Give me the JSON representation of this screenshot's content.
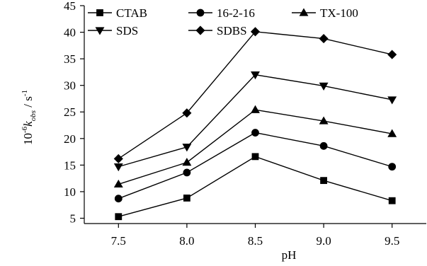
{
  "chart_data": {
    "type": "line",
    "xlabel": "pH",
    "ylabel_parts": {
      "base": "10",
      "exp": "-6",
      "k": "k",
      "sub": "obs",
      "unit": " / s",
      "unit_exp": "-1"
    },
    "x": [
      7.5,
      8.0,
      8.5,
      9.0,
      9.5
    ],
    "x_tick_labels": [
      "7.5",
      "8.0",
      "8.5",
      "9.0",
      "9.5"
    ],
    "xlim": [
      7.25,
      9.75
    ],
    "y_ticks": [
      5,
      10,
      15,
      20,
      25,
      30,
      35,
      40,
      45
    ],
    "y_tick_labels": [
      "5",
      "10",
      "15",
      "20",
      "25",
      "30",
      "35",
      "40",
      "45"
    ],
    "ylim": [
      4,
      45
    ],
    "grid": false,
    "legend_placement": "top-left",
    "series": [
      {
        "name": "CTAB",
        "marker": "square",
        "values": [
          5.3,
          8.8,
          16.6,
          12.1,
          8.3
        ]
      },
      {
        "name": "16-2-16",
        "marker": "circle",
        "values": [
          8.7,
          13.6,
          21.1,
          18.6,
          14.7
        ]
      },
      {
        "name": "TX-100",
        "marker": "triangle-up",
        "values": [
          11.4,
          15.5,
          25.4,
          23.3,
          20.9
        ]
      },
      {
        "name": "SDS",
        "marker": "triangle-down",
        "values": [
          14.7,
          18.4,
          32.0,
          29.9,
          27.3
        ]
      },
      {
        "name": "SDBS",
        "marker": "diamond",
        "values": [
          16.2,
          24.8,
          40.1,
          38.8,
          35.8
        ]
      }
    ]
  }
}
